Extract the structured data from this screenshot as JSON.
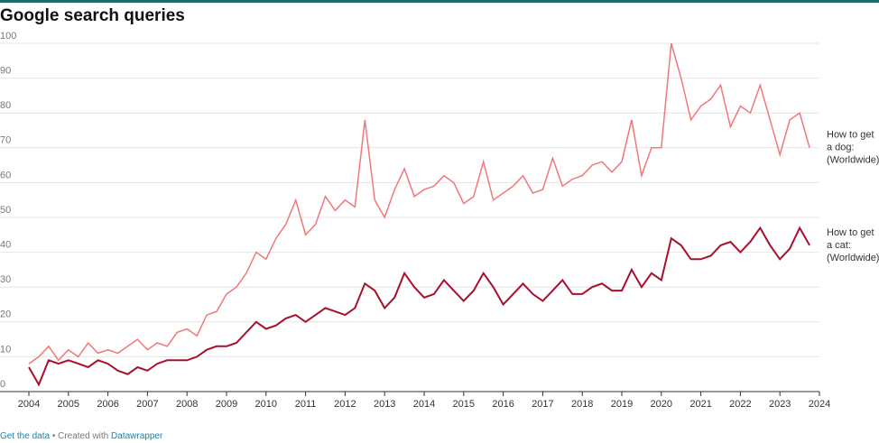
{
  "chart_data": {
    "type": "line",
    "title": "Google search queries",
    "x": [
      2004,
      2004.25,
      2004.5,
      2004.75,
      2005,
      2005.25,
      2005.5,
      2005.75,
      2006,
      2006.25,
      2006.5,
      2006.75,
      2007,
      2007.25,
      2007.5,
      2007.75,
      2008,
      2008.25,
      2008.5,
      2008.75,
      2009,
      2009.25,
      2009.5,
      2009.75,
      2010,
      2010.25,
      2010.5,
      2010.75,
      2011,
      2011.25,
      2011.5,
      2011.75,
      2012,
      2012.25,
      2012.5,
      2012.75,
      2013,
      2013.25,
      2013.5,
      2013.75,
      2014,
      2014.25,
      2014.5,
      2014.75,
      2015,
      2015.25,
      2015.5,
      2015.75,
      2016,
      2016.25,
      2016.5,
      2016.75,
      2017,
      2017.25,
      2017.5,
      2017.75,
      2018,
      2018.25,
      2018.5,
      2018.75,
      2019,
      2019.25,
      2019.5,
      2019.75,
      2020,
      2020.25,
      2020.5,
      2020.75,
      2021,
      2021.25,
      2021.5,
      2021.75,
      2022,
      2022.25,
      2022.5,
      2022.75,
      2023,
      2023.25,
      2023.5,
      2023.75
    ],
    "series": [
      {
        "label": [
          "How to get",
          "a dog:",
          "(Worldwide)"
        ],
        "color": "#f0787a",
        "values": [
          8,
          10,
          13,
          9,
          12,
          10,
          14,
          11,
          12,
          11,
          13,
          15,
          12,
          14,
          13,
          17,
          18,
          16,
          22,
          23,
          28,
          30,
          34,
          40,
          38,
          44,
          48,
          55,
          45,
          48,
          56,
          52,
          55,
          53,
          78,
          55,
          50,
          58,
          64,
          56,
          58,
          59,
          62,
          60,
          54,
          56,
          66,
          55,
          57,
          59,
          62,
          57,
          58,
          67,
          59,
          61,
          62,
          65,
          66,
          63,
          66,
          78,
          62,
          70,
          70,
          100,
          90,
          78,
          82,
          84,
          88,
          76,
          82,
          80,
          88,
          78,
          68,
          78,
          80,
          70
        ]
      },
      {
        "label": [
          "How to get",
          "a cat:",
          "(Worldwide)"
        ],
        "color": "#a8102e",
        "values": [
          7,
          2,
          9,
          8,
          9,
          8,
          7,
          9,
          8,
          6,
          5,
          7,
          6,
          8,
          9,
          9,
          9,
          10,
          12,
          13,
          13,
          14,
          17,
          20,
          18,
          19,
          21,
          22,
          20,
          22,
          24,
          23,
          22,
          24,
          31,
          29,
          24,
          27,
          34,
          30,
          27,
          28,
          32,
          29,
          26,
          29,
          34,
          30,
          25,
          28,
          31,
          28,
          26,
          29,
          32,
          28,
          28,
          30,
          31,
          29,
          29,
          35,
          30,
          34,
          32,
          44,
          42,
          38,
          38,
          39,
          42,
          43,
          40,
          43,
          47,
          42,
          38,
          41,
          47,
          42
        ]
      }
    ],
    "xlim": [
      2004,
      2024
    ],
    "xticks": [
      2004,
      2005,
      2006,
      2007,
      2008,
      2009,
      2010,
      2011,
      2012,
      2013,
      2014,
      2015,
      2016,
      2017,
      2018,
      2019,
      2020,
      2021,
      2022,
      2023,
      2024
    ],
    "ylim": [
      0,
      100
    ],
    "yticks": [
      0,
      10,
      20,
      30,
      40,
      50,
      60,
      70,
      80,
      90,
      100
    ],
    "grid": true,
    "footer": [
      "Get the data",
      " • Created with ",
      "Datawrapper"
    ]
  }
}
